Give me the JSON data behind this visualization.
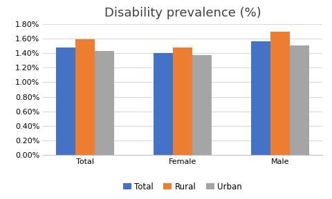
{
  "title": "Disability prevalence (%)",
  "categories": [
    "Total",
    "Female",
    "Male"
  ],
  "series": {
    "Total": [
      0.0148,
      0.014,
      0.0156
    ],
    "Rural": [
      0.0159,
      0.0148,
      0.0169
    ],
    "Urban": [
      0.0143,
      0.0137,
      0.015
    ]
  },
  "series_colors": {
    "Total": "#4472C4",
    "Rural": "#ED7D31",
    "Urban": "#A5A5A5"
  },
  "ylim": [
    0,
    0.018
  ],
  "yticks": [
    0.0,
    0.002,
    0.004,
    0.006,
    0.008,
    0.01,
    0.012,
    0.014,
    0.016,
    0.018
  ],
  "bar_width": 0.2,
  "title_fontsize": 13,
  "tick_fontsize": 8,
  "legend_fontsize": 8.5,
  "background_color": "#ffffff",
  "grid_color": "#d9d9d9",
  "title_color": "#404040",
  "spine_color": "#c0c0c0"
}
